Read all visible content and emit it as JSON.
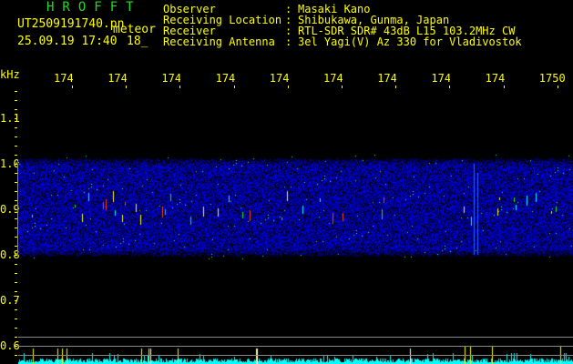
{
  "header": {
    "title": "HROFFT",
    "filename": "UT2509191740.pn",
    "tag": "meteor",
    "datetime": "25.09.19 17:40",
    "count": "18_",
    "info": [
      {
        "label": "Observer",
        "value": "Masaki Kano"
      },
      {
        "label": "Receiving Location",
        "value": "Shibukawa, Gunma, Japan"
      },
      {
        "label": "Receiver",
        "value": "RTL-SDR SDR# 43dB L15 103.2MHz CW"
      },
      {
        "label": "Receiving Antenna",
        "value": "3el Yagi(V) Az 330 for Vladivostok"
      }
    ]
  },
  "axis": {
    "unit": "kHz",
    "x_ticks": [
      "1741",
      "1742",
      "1743",
      "1744",
      "1745",
      "1746",
      "1747",
      "1748",
      "1749",
      "1750"
    ],
    "y_ticks": [
      "1.1",
      "1.0",
      "0.9",
      "0.8",
      "0.7",
      "0.6"
    ]
  },
  "colors": {
    "title": "#22dd22",
    "text": "#ffff00",
    "noise": "#0000ff",
    "histogram": "#00ffff",
    "grid": "#888888"
  }
}
